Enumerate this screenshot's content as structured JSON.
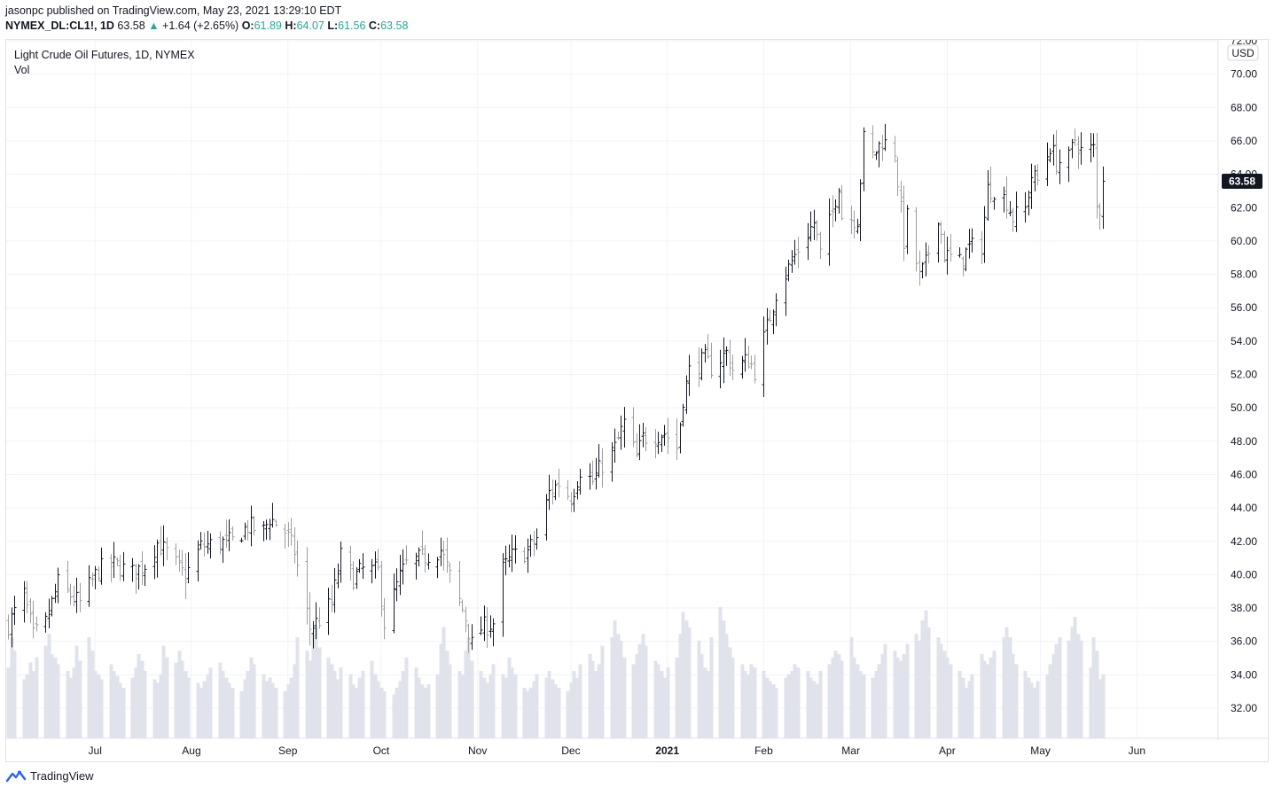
{
  "header": {
    "publisher": "jasonpc",
    "published_text": "published on TradingView.com, May 23, 2021 13:29:10 EDT",
    "symbol": "NYMEX_DL:CL1!, 1D",
    "last": "63.58",
    "change_arrow": "▲",
    "change": "+1.64 (+2.65%)",
    "o_label": "O:",
    "o_value": "61.89",
    "h_label": "H:",
    "h_value": "64.07",
    "l_label": "L:",
    "l_value": "61.56",
    "c_label": "C:",
    "c_value": "63.58"
  },
  "legend": {
    "title": "Light Crude Oil Futures, 1D, NYMEX",
    "volume_label": "Vol"
  },
  "colors": {
    "up_bar": "#131722",
    "down_bar": "#9e9e9e",
    "volume": "#e0e3eb",
    "grid": "#f0f3fa",
    "accent_teal": "#26a69a",
    "price_tag_bg": "#131722"
  },
  "footer": {
    "brand": "TradingView",
    "logo_icon": "tradingview-logo-icon"
  },
  "chart_data": {
    "type": "ohlc",
    "title": "Light Crude Oil Futures, 1D, NYMEX",
    "currency_label": "USD",
    "last_price_label": "63.58",
    "ylim": [
      30.0,
      72.0
    ],
    "y_ticks": [
      "72.00",
      "70.00",
      "68.00",
      "66.00",
      "64.00",
      "62.00",
      "60.00",
      "58.00",
      "56.00",
      "54.00",
      "52.00",
      "50.00",
      "48.00",
      "46.00",
      "44.00",
      "42.00",
      "40.00",
      "38.00",
      "36.00",
      "34.00",
      "32.00"
    ],
    "x_ticks": [
      {
        "label": "Jul",
        "date": "2020-07-01"
      },
      {
        "label": "Aug",
        "date": "2020-08-01"
      },
      {
        "label": "Sep",
        "date": "2020-09-01"
      },
      {
        "label": "Oct",
        "date": "2020-10-01"
      },
      {
        "label": "Nov",
        "date": "2020-11-01"
      },
      {
        "label": "Dec",
        "date": "2020-12-01"
      },
      {
        "label": "2021",
        "date": "2021-01-01",
        "bold": true
      },
      {
        "label": "Feb",
        "date": "2021-02-01"
      },
      {
        "label": "Mar",
        "date": "2021-03-01"
      },
      {
        "label": "Apr",
        "date": "2021-04-01"
      },
      {
        "label": "May",
        "date": "2021-05-01"
      },
      {
        "label": "Jun",
        "date": "2021-06-01"
      }
    ],
    "x_range": [
      "2020-06-03",
      "2021-06-20"
    ],
    "grid": true,
    "closes_anchor": [
      [
        "2020-06-03",
        37.0
      ],
      [
        "2020-06-08",
        38.8
      ],
      [
        "2020-06-11",
        36.3
      ],
      [
        "2020-06-15",
        37.1
      ],
      [
        "2020-06-19",
        39.5
      ],
      [
        "2020-06-24",
        38.6
      ],
      [
        "2020-06-26",
        38.3
      ],
      [
        "2020-07-02",
        40.3
      ],
      [
        "2020-07-07",
        40.6
      ],
      [
        "2020-07-13",
        40.1
      ],
      [
        "2020-07-17",
        40.6
      ],
      [
        "2020-07-21",
        41.9
      ],
      [
        "2020-07-24",
        41.3
      ],
      [
        "2020-07-30",
        39.9
      ],
      [
        "2020-08-04",
        41.7
      ],
      [
        "2020-08-10",
        41.9
      ],
      [
        "2020-08-14",
        42.0
      ],
      [
        "2020-08-19",
        42.9
      ],
      [
        "2020-08-24",
        42.6
      ],
      [
        "2020-08-26",
        43.4
      ],
      [
        "2020-08-31",
        42.6
      ],
      [
        "2020-09-03",
        41.4
      ],
      [
        "2020-09-08",
        36.8
      ],
      [
        "2020-09-11",
        37.3
      ],
      [
        "2020-09-15",
        38.3
      ],
      [
        "2020-09-18",
        41.1
      ],
      [
        "2020-09-22",
        39.8
      ],
      [
        "2020-09-25",
        40.3
      ],
      [
        "2020-09-30",
        40.2
      ],
      [
        "2020-10-02",
        37.1
      ],
      [
        "2020-10-07",
        39.9
      ],
      [
        "2020-10-09",
        40.6
      ],
      [
        "2020-10-14",
        41.0
      ],
      [
        "2020-10-20",
        41.5
      ],
      [
        "2020-10-23",
        39.9
      ],
      [
        "2020-10-28",
        37.4
      ],
      [
        "2020-10-30",
        35.8
      ],
      [
        "2020-11-02",
        36.8
      ],
      [
        "2020-11-06",
        37.1
      ],
      [
        "2020-11-09",
        40.3
      ],
      [
        "2020-11-12",
        41.1
      ],
      [
        "2020-11-17",
        41.4
      ],
      [
        "2020-11-20",
        42.2
      ],
      [
        "2020-11-24",
        44.9
      ],
      [
        "2020-11-27",
        45.5
      ],
      [
        "2020-12-01",
        44.6
      ],
      [
        "2020-12-04",
        46.3
      ],
      [
        "2020-12-08",
        45.6
      ],
      [
        "2020-12-11",
        46.6
      ],
      [
        "2020-12-15",
        47.6
      ],
      [
        "2020-12-18",
        49.1
      ],
      [
        "2020-12-22",
        47.0
      ],
      [
        "2020-12-24",
        48.2
      ],
      [
        "2020-12-31",
        48.5
      ],
      [
        "2021-01-04",
        47.6
      ],
      [
        "2021-01-06",
        50.6
      ],
      [
        "2021-01-08",
        52.2
      ],
      [
        "2021-01-13",
        52.9
      ],
      [
        "2021-01-15",
        52.4
      ],
      [
        "2021-01-20",
        53.3
      ],
      [
        "2021-01-22",
        52.3
      ],
      [
        "2021-01-27",
        52.9
      ],
      [
        "2021-01-29",
        52.2
      ],
      [
        "2021-02-02",
        54.8
      ],
      [
        "2021-02-05",
        56.9
      ],
      [
        "2021-02-09",
        58.4
      ],
      [
        "2021-02-12",
        59.5
      ],
      [
        "2021-02-17",
        61.1
      ],
      [
        "2021-02-19",
        59.2
      ],
      [
        "2021-02-23",
        61.7
      ],
      [
        "2021-02-25",
        63.5
      ],
      [
        "2021-02-26",
        61.5
      ],
      [
        "2021-03-03",
        61.3
      ],
      [
        "2021-03-05",
        66.1
      ],
      [
        "2021-03-08",
        65.1
      ],
      [
        "2021-03-11",
        66.0
      ],
      [
        "2021-03-15",
        65.4
      ],
      [
        "2021-03-18",
        60.0
      ],
      [
        "2021-03-19",
        61.4
      ],
      [
        "2021-03-23",
        57.8
      ],
      [
        "2021-03-25",
        58.6
      ],
      [
        "2021-03-29",
        61.6
      ],
      [
        "2021-03-31",
        59.2
      ],
      [
        "2021-04-05",
        58.7
      ],
      [
        "2021-04-08",
        59.6
      ],
      [
        "2021-04-12",
        59.7
      ],
      [
        "2021-04-14",
        63.1
      ],
      [
        "2021-04-16",
        63.1
      ],
      [
        "2021-04-20",
        62.4
      ],
      [
        "2021-04-22",
        61.4
      ],
      [
        "2021-04-26",
        61.9
      ],
      [
        "2021-04-28",
        63.9
      ],
      [
        "2021-04-30",
        63.6
      ],
      [
        "2021-05-04",
        65.7
      ],
      [
        "2021-05-06",
        64.7
      ],
      [
        "2021-05-10",
        64.9
      ],
      [
        "2021-05-12",
        66.1
      ],
      [
        "2021-05-14",
        65.4
      ],
      [
        "2021-05-18",
        65.5
      ],
      [
        "2021-05-19",
        62.0
      ],
      [
        "2021-05-20",
        61.9
      ],
      [
        "2021-05-21",
        63.58
      ]
    ],
    "volume_series_note": "",
    "volume_relative": [
      0.42,
      0.6,
      0.52,
      0.35,
      0.38,
      0.45,
      0.4,
      0.48,
      0.55,
      0.62,
      0.5,
      0.48,
      0.44,
      0.4,
      0.36,
      0.42,
      0.55,
      0.46,
      0.6,
      0.52,
      0.4,
      0.38,
      0.35,
      0.44,
      0.4,
      0.37,
      0.33,
      0.3,
      0.36,
      0.42,
      0.5,
      0.46,
      0.4,
      0.35,
      0.33,
      0.38,
      0.55,
      0.48,
      0.45,
      0.52,
      0.46,
      0.4,
      0.36,
      0.33,
      0.3,
      0.34,
      0.38,
      0.42,
      0.45,
      0.4,
      0.36,
      0.33,
      0.3,
      0.28,
      0.35,
      0.4,
      0.48,
      0.44,
      0.38,
      0.34,
      0.36,
      0.33,
      0.3,
      0.28,
      0.32,
      0.36,
      0.44,
      0.6,
      0.52,
      0.46,
      0.62,
      0.66,
      0.54,
      0.48,
      0.44,
      0.4,
      0.35,
      0.42,
      0.38,
      0.32,
      0.3,
      0.36,
      0.4,
      0.46,
      0.38,
      0.34,
      0.3,
      0.28,
      0.26,
      0.3,
      0.34,
      0.4,
      0.48,
      0.42,
      0.36,
      0.32,
      0.3,
      0.32,
      0.38,
      0.56,
      0.66,
      0.52,
      0.44,
      0.4,
      0.38,
      0.52,
      0.6,
      0.46,
      0.4,
      0.36,
      0.33,
      0.38,
      0.44,
      0.38,
      0.36,
      0.48,
      0.42,
      0.38,
      0.3,
      0.28,
      0.3,
      0.34,
      0.38,
      0.36,
      0.4,
      0.35,
      0.32,
      0.3,
      0.28,
      0.33,
      0.4,
      0.36,
      0.44,
      0.5,
      0.46,
      0.4,
      0.44,
      0.55,
      0.6,
      0.7,
      0.62,
      0.58,
      0.48,
      0.44,
      0.5,
      0.56,
      0.62,
      0.55,
      0.46,
      0.44,
      0.4,
      0.36,
      0.42,
      0.48,
      0.62,
      0.75,
      0.7,
      0.66,
      0.58,
      0.5,
      0.42,
      0.4,
      0.6,
      0.78,
      0.7,
      0.62,
      0.54,
      0.48,
      0.44,
      0.4,
      0.38,
      0.44,
      0.42,
      0.4,
      0.36,
      0.34,
      0.32,
      0.3,
      0.36,
      0.38,
      0.4,
      0.44,
      0.42,
      0.4,
      0.36,
      0.34,
      0.32,
      0.4,
      0.44,
      0.48,
      0.52,
      0.5,
      0.46,
      0.6,
      0.48,
      0.44,
      0.4,
      0.38,
      0.36,
      0.4,
      0.44,
      0.5,
      0.56,
      0.52,
      0.48,
      0.46,
      0.5,
      0.56,
      0.62,
      0.58,
      0.7,
      0.76,
      0.66,
      0.6,
      0.56,
      0.52,
      0.48,
      0.44,
      0.4,
      0.36,
      0.3,
      0.34,
      0.38,
      0.5,
      0.46,
      0.44,
      0.48,
      0.52,
      0.6,
      0.66,
      0.6,
      0.5,
      0.44,
      0.4,
      0.36,
      0.33,
      0.3,
      0.34,
      0.38,
      0.44,
      0.5,
      0.56,
      0.6,
      0.58,
      0.66,
      0.72,
      0.62,
      0.58
    ]
  }
}
